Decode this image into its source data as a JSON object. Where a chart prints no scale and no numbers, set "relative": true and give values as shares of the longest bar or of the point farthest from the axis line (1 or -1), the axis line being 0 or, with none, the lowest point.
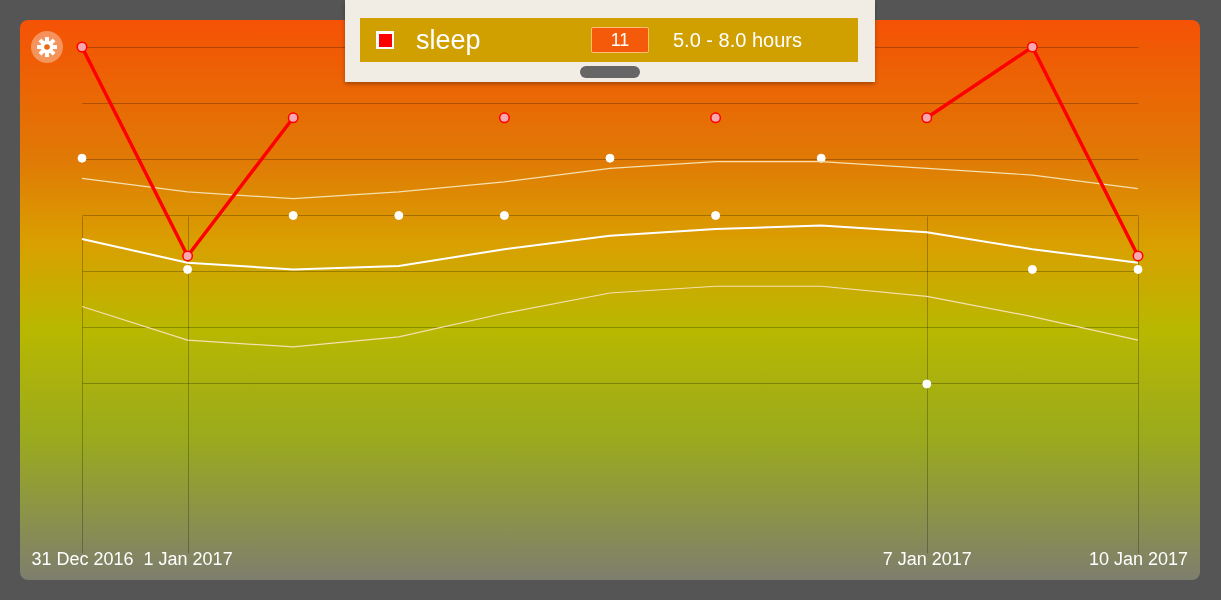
{
  "chart_data": {
    "type": "line",
    "relative": true,
    "grid": true,
    "legend": "top",
    "categories": [
      "31 Dec 2016",
      "1 Jan 2017",
      null,
      null,
      null,
      null,
      null,
      null,
      "7 Jan 2017",
      null,
      "10 Jan 2017"
    ],
    "series": [
      {
        "name": "sleep",
        "marker": "circle",
        "color": "#ff0000",
        "values": [
          1,
          0.38,
          0.79,
          null,
          0.79,
          null,
          0.79,
          null,
          0.79,
          1,
          0.38
        ]
      },
      {
        "type": "scatter",
        "color": "#ffffff",
        "values": [
          0.67,
          0.34,
          0.5,
          0.5,
          0.5,
          0.67,
          0.5,
          0.67,
          0,
          0.34,
          0.34
        ]
      },
      {
        "color": "#ffffff",
        "values": [
          0.43,
          0.36,
          0.34,
          0.35,
          0.4,
          0.44,
          0.46,
          0.47,
          0.45,
          0.4,
          0.36
        ]
      },
      {
        "color": "#f5e0b0",
        "values": [
          0.61,
          0.57,
          0.55,
          0.57,
          0.6,
          0.64,
          0.66,
          0.66,
          0.64,
          0.62,
          0.58
        ]
      },
      {
        "color": "#f5e0b0",
        "values": [
          0.23,
          0.13,
          0.11,
          0.14,
          0.21,
          0.27,
          0.29,
          0.29,
          0.26,
          0.2,
          0.13
        ]
      }
    ],
    "annotations": [
      "11",
      "5.0 - 8.0 hours"
    ]
  }
}
